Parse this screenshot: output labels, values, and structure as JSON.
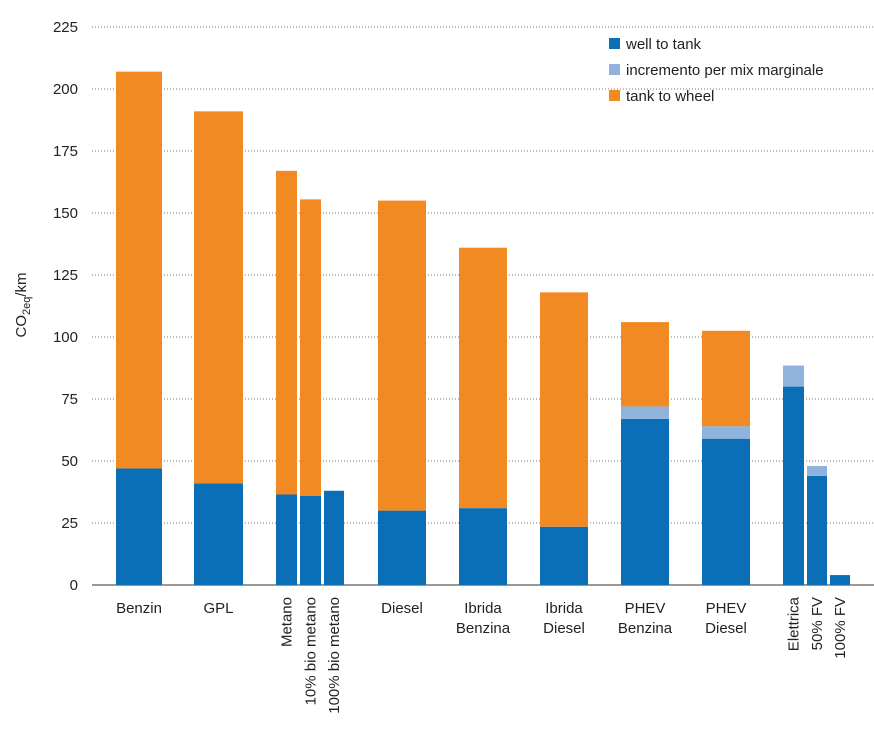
{
  "chart_data": {
    "type": "bar",
    "stacked": true,
    "ylim": [
      0,
      225
    ],
    "yticks": [
      0,
      25,
      50,
      75,
      100,
      125,
      150,
      175,
      200,
      225
    ],
    "grid": "horizontal dotted",
    "legend_position": "top-right",
    "ylabel": {
      "main": "CO",
      "sub": "2eq",
      "unit": "/km"
    },
    "colors": {
      "well_to_tank": "#0b6fb8",
      "incremento": "#8fb3dd",
      "tank_to_wheel": "#f28a24"
    },
    "series": [
      {
        "key": "well_to_tank",
        "name": "well to tank"
      },
      {
        "key": "incremento",
        "name": "incremento per mix marginale"
      },
      {
        "key": "tank_to_wheel",
        "name": "tank to wheel"
      }
    ],
    "bars": [
      {
        "label": [
          "Benzin"
        ],
        "well_to_tank": 47,
        "incremento": 0,
        "tank_to_wheel": 160
      },
      {
        "label": [
          "GPL"
        ],
        "well_to_tank": 41,
        "incremento": 0,
        "tank_to_wheel": 150
      },
      {
        "label": [
          "Metano"
        ],
        "well_to_tank": 36.5,
        "incremento": 0,
        "tank_to_wheel": 130.5,
        "vertical": true
      },
      {
        "label": [
          "10% bio metano"
        ],
        "well_to_tank": 36,
        "incremento": 0,
        "tank_to_wheel": 119.5,
        "vertical": true
      },
      {
        "label": [
          "100% bio metano"
        ],
        "well_to_tank": 38,
        "incremento": 0,
        "tank_to_wheel": 0,
        "vertical": true
      },
      {
        "label": [
          "Diesel"
        ],
        "well_to_tank": 30,
        "incremento": 0,
        "tank_to_wheel": 125
      },
      {
        "label": [
          "Ibrida",
          "Benzina"
        ],
        "well_to_tank": 31,
        "incremento": 0,
        "tank_to_wheel": 105
      },
      {
        "label": [
          "Ibrida",
          "Diesel"
        ],
        "well_to_tank": 23.5,
        "incremento": 0,
        "tank_to_wheel": 94.5
      },
      {
        "label": [
          "PHEV",
          "Benzina"
        ],
        "well_to_tank": 67,
        "incremento": 5,
        "tank_to_wheel": 34
      },
      {
        "label": [
          "PHEV",
          "Diesel"
        ],
        "well_to_tank": 59,
        "incremento": 5,
        "tank_to_wheel": 38.5
      },
      {
        "label": [
          "Elettrica"
        ],
        "well_to_tank": 80,
        "incremento": 8.5,
        "tank_to_wheel": 0,
        "vertical": true
      },
      {
        "label": [
          "50% FV"
        ],
        "well_to_tank": 44,
        "incremento": 4,
        "tank_to_wheel": 0,
        "vertical": true
      },
      {
        "label": [
          "100% FV"
        ],
        "well_to_tank": 4,
        "incremento": 0,
        "tank_to_wheel": 0,
        "vertical": true
      }
    ]
  }
}
